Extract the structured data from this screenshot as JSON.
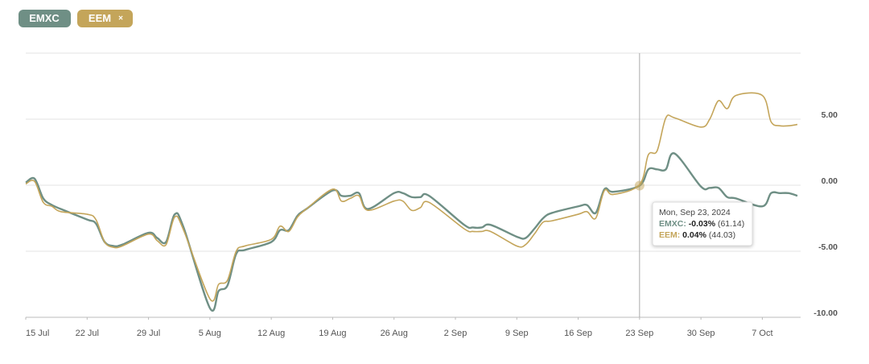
{
  "chart_data": {
    "type": "line",
    "x": [
      "2024-07-15",
      "2024-07-16",
      "2024-07-17",
      "2024-07-18",
      "2024-07-19",
      "2024-07-22",
      "2024-07-23",
      "2024-07-24",
      "2024-07-25",
      "2024-07-26",
      "2024-07-29",
      "2024-07-30",
      "2024-07-31",
      "2024-08-01",
      "2024-08-02",
      "2024-08-05",
      "2024-08-06",
      "2024-08-07",
      "2024-08-08",
      "2024-08-09",
      "2024-08-12",
      "2024-08-13",
      "2024-08-14",
      "2024-08-15",
      "2024-08-16",
      "2024-08-19",
      "2024-08-20",
      "2024-08-21",
      "2024-08-22",
      "2024-08-23",
      "2024-08-26",
      "2024-08-27",
      "2024-08-28",
      "2024-08-29",
      "2024-08-30",
      "2024-09-03",
      "2024-09-04",
      "2024-09-05",
      "2024-09-06",
      "2024-09-09",
      "2024-09-10",
      "2024-09-11",
      "2024-09-12",
      "2024-09-13",
      "2024-09-16",
      "2024-09-17",
      "2024-09-18",
      "2024-09-19",
      "2024-09-20",
      "2024-09-23",
      "2024-09-24",
      "2024-09-25",
      "2024-09-26",
      "2024-09-27",
      "2024-09-30",
      "2024-10-01",
      "2024-10-02",
      "2024-10-03",
      "2024-10-04",
      "2024-10-07",
      "2024-10-08",
      "2024-10-09",
      "2024-10-10",
      "2024-10-11"
    ],
    "series": [
      {
        "name": "EMXC",
        "color": "#6f8f85",
        "values": [
          0.2,
          0.5,
          -1.0,
          -1.5,
          -1.8,
          -2.6,
          -2.9,
          -4.3,
          -4.6,
          -4.5,
          -3.6,
          -4.0,
          -4.3,
          -2.2,
          -3.2,
          -9.3,
          -8.0,
          -7.6,
          -5.2,
          -4.9,
          -4.3,
          -3.4,
          -3.4,
          -2.3,
          -1.8,
          -0.4,
          -0.8,
          -0.8,
          -0.6,
          -1.8,
          -0.6,
          -0.6,
          -0.9,
          -0.9,
          -0.8,
          -3.0,
          -3.2,
          -3.2,
          -3.0,
          -3.9,
          -4.0,
          -3.3,
          -2.5,
          -2.1,
          -1.6,
          -1.5,
          -2.1,
          -0.3,
          -0.5,
          -0.03,
          1.2,
          1.2,
          1.2,
          2.4,
          -0.1,
          -0.2,
          -0.2,
          -0.9,
          -1.0,
          -1.6,
          -0.6,
          -0.6,
          -0.6,
          -0.8
        ]
      },
      {
        "name": "EEM",
        "color": "#c4a55a",
        "values": [
          0.1,
          0.3,
          -1.3,
          -1.6,
          -2.0,
          -2.2,
          -2.6,
          -4.3,
          -4.7,
          -4.6,
          -3.7,
          -4.2,
          -4.5,
          -2.4,
          -3.4,
          -8.6,
          -7.5,
          -7.2,
          -5.0,
          -4.6,
          -4.1,
          -3.1,
          -3.5,
          -2.4,
          -1.8,
          -0.3,
          -1.2,
          -1.0,
          -0.8,
          -1.9,
          -1.2,
          -1.2,
          -1.9,
          -1.7,
          -1.3,
          -3.3,
          -3.5,
          -3.5,
          -3.5,
          -4.6,
          -4.5,
          -3.7,
          -2.8,
          -2.7,
          -2.2,
          -2.0,
          -2.5,
          -0.4,
          -0.7,
          0.04,
          2.3,
          2.6,
          5.1,
          5.1,
          4.4,
          5.0,
          6.4,
          5.8,
          6.8,
          6.8,
          4.8,
          4.5,
          4.5,
          4.6
        ]
      }
    ],
    "ylim": [
      -10,
      10
    ],
    "yticks": [
      {
        "value": -10,
        "label": "-10.00"
      },
      {
        "value": -5,
        "label": "-5.00"
      },
      {
        "value": 0,
        "label": "0.00"
      },
      {
        "value": 5,
        "label": "5.00"
      }
    ],
    "xticks": [
      {
        "value": "2024-07-15",
        "label": "15 Jul"
      },
      {
        "value": "2024-07-22",
        "label": "22 Jul"
      },
      {
        "value": "2024-07-29",
        "label": "29 Jul"
      },
      {
        "value": "2024-08-05",
        "label": "5 Aug"
      },
      {
        "value": "2024-08-12",
        "label": "12 Aug"
      },
      {
        "value": "2024-08-19",
        "label": "19 Aug"
      },
      {
        "value": "2024-08-26",
        "label": "26 Aug"
      },
      {
        "value": "2024-09-02",
        "label": "2 Sep"
      },
      {
        "value": "2024-09-09",
        "label": "9 Sep"
      },
      {
        "value": "2024-09-16",
        "label": "16 Sep"
      },
      {
        "value": "2024-09-23",
        "label": "23 Sep"
      },
      {
        "value": "2024-09-30",
        "label": "30 Sep"
      },
      {
        "value": "2024-10-07",
        "label": "7 Oct"
      }
    ],
    "grid": true,
    "tooltip": {
      "x": "2024-09-23",
      "date": "Mon, Sep 23, 2024",
      "rows": [
        {
          "label": "EMXC:",
          "change": "-0.03%",
          "price": "(61.14)"
        },
        {
          "label": "EEM:",
          "change": "0.04%",
          "price": "(44.03)"
        }
      ]
    }
  }
}
